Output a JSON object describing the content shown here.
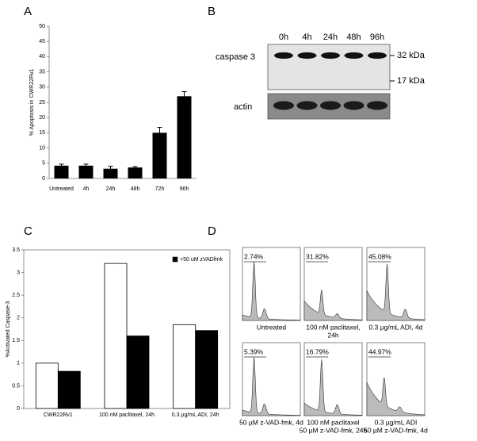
{
  "chart_data": [
    {
      "type": "bar",
      "panel": "A",
      "ylabel": "% Apoptosis in CWR22Rv1",
      "categories": [
        "Untreated",
        "4h",
        "24h",
        "48h",
        "72h",
        "96h"
      ],
      "values": [
        4.2,
        4.2,
        3.2,
        3.6,
        15,
        27
      ],
      "errors": [
        0.5,
        0.5,
        0.8,
        0.3,
        1.8,
        1.5
      ],
      "color": "#000000",
      "ylim": [
        0,
        50
      ],
      "yticks": [
        0,
        5,
        10,
        15,
        20,
        25,
        30,
        35,
        40,
        45,
        50
      ]
    },
    {
      "type": "grouped_bar",
      "panel": "C",
      "ylabel": "%Activated Caspase-3",
      "categories": [
        "CWR22Rv1",
        "100 nM paclitaxel, 24h",
        "0.3 µg/mL ADI, 24h"
      ],
      "series": [
        {
          "color": "#ffffff",
          "values": [
            1.0,
            3.2,
            1.85
          ]
        },
        {
          "name": "+50 uM zVADfmk",
          "color": "#000000",
          "values": [
            0.82,
            1.6,
            1.72
          ]
        }
      ],
      "ylim": [
        0,
        3.5
      ],
      "yticks": [
        0,
        0.5,
        1,
        1.5,
        2,
        2.5,
        3,
        3.5
      ],
      "legend": "upper right"
    }
  ],
  "blot": {
    "panel": "B",
    "lanes": [
      "0h",
      "4h",
      "24h",
      "48h",
      "96h"
    ],
    "rows": [
      "caspase 3",
      "actin"
    ],
    "markers": [
      "32 kDa",
      "17 kDa"
    ]
  },
  "flow": {
    "panel": "D",
    "plots": [
      {
        "percent": "2.74%",
        "caption": [
          "Untreated"
        ]
      },
      {
        "percent": "31.82%",
        "caption": [
          "100 nM paclitaxel,",
          "24h"
        ]
      },
      {
        "percent": "45.08%",
        "caption": [
          "0.3 µg/mL ADI, 4d"
        ]
      },
      {
        "percent": "5.39%",
        "caption": [
          "50 µM z-VAD-fmk, 4d"
        ]
      },
      {
        "percent": "16.79%",
        "caption": [
          "100 nM paclitaxel",
          "50 µM z-VAD-fmk, 24h"
        ]
      },
      {
        "percent": "44.97%",
        "caption": [
          "0.3 µg/mL ADI",
          "50 µM z-VAD-fmk, 4d"
        ]
      }
    ]
  }
}
